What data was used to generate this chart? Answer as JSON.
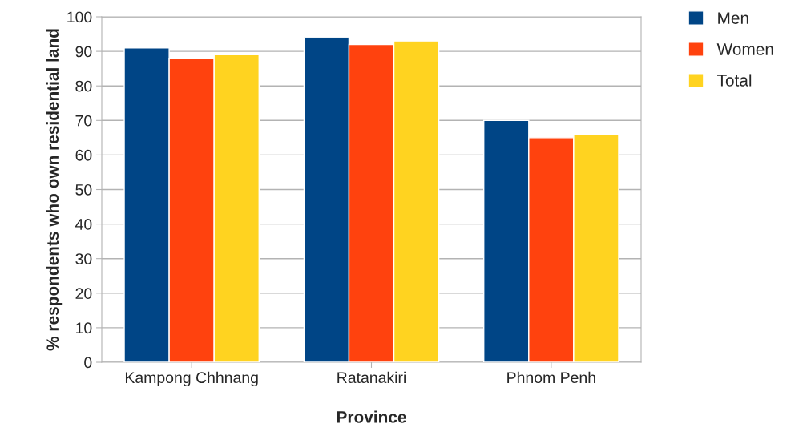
{
  "chart_data": {
    "type": "bar",
    "xlabel": "Province",
    "ylabel": "% respondents who own residential land",
    "categories": [
      "Kampong Chhnang",
      "Ratanakiri",
      "Phnom Penh"
    ],
    "series": [
      {
        "name": "Men",
        "color": "#004586",
        "values": [
          91,
          94,
          70
        ]
      },
      {
        "name": "Women",
        "color": "#ff420e",
        "values": [
          88,
          92,
          65
        ]
      },
      {
        "name": "Total",
        "color": "#ffd320",
        "values": [
          89,
          93,
          66
        ]
      }
    ],
    "ylim": [
      0,
      100
    ],
    "yticks": [
      0,
      10,
      20,
      30,
      40,
      50,
      60,
      70,
      80,
      90,
      100
    ],
    "grid": "y",
    "legend": "top right"
  }
}
